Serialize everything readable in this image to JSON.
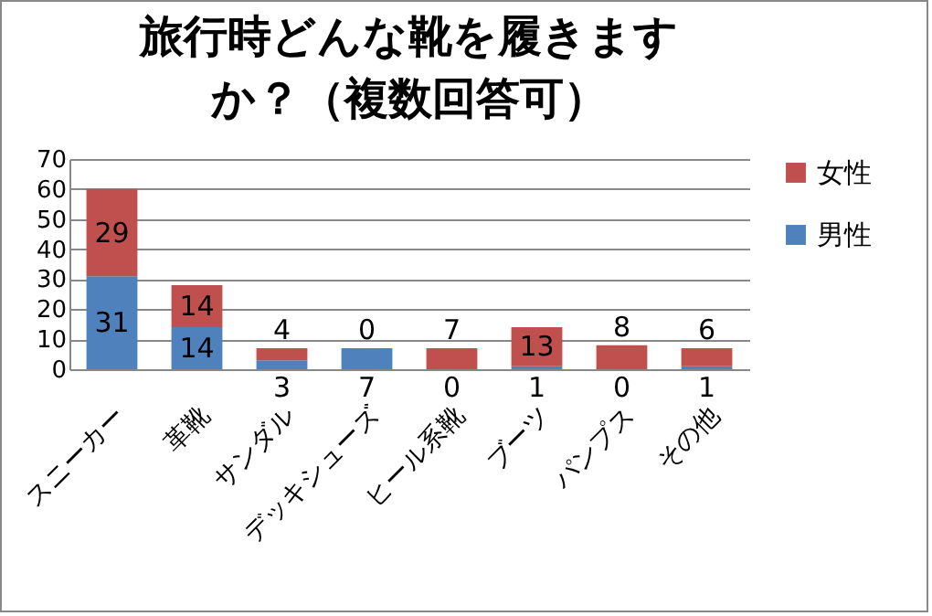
{
  "chart_data": {
    "type": "bar",
    "title": "旅行時どんな靴を履きますか？（複数回答可）",
    "categories": [
      "スニーカー",
      "革靴",
      "サンダル",
      "デッキシューズ",
      "ヒール系靴",
      "ブーツ",
      "パンプス",
      "その他"
    ],
    "stacked": true,
    "series": [
      {
        "name": "男性",
        "color": "#4f81bd",
        "values": [
          31,
          14,
          3,
          7,
          0,
          1,
          0,
          1
        ]
      },
      {
        "name": "女性",
        "color": "#c0504d",
        "values": [
          29,
          14,
          4,
          0,
          7,
          13,
          8,
          6
        ]
      }
    ],
    "ylim": [
      0,
      70
    ],
    "yticks": [
      0,
      10,
      20,
      30,
      40,
      50,
      60,
      70
    ],
    "grid": "y",
    "legend": "right",
    "data_labels": true
  }
}
